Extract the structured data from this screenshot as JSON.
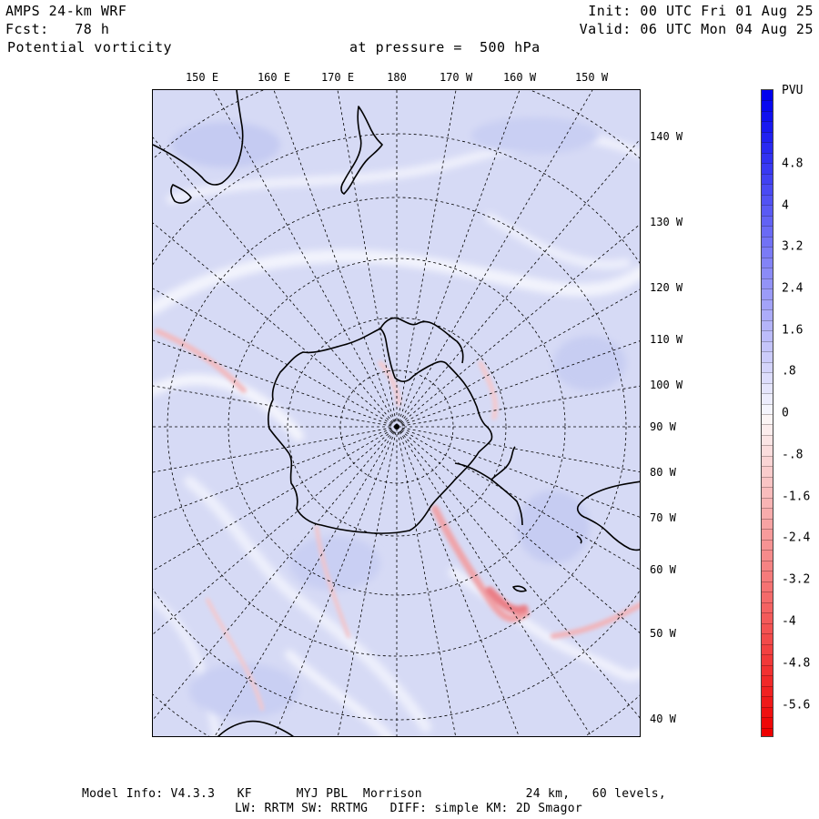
{
  "header": {
    "model_title": "AMPS 24-km WRF",
    "forecast": "Fcst:   78 h",
    "field": "Potential vorticity",
    "pressure": "at pressure =  500 hPa",
    "init": "Init: 00 UTC Fri 01 Aug 25",
    "valid": "Valid: 06 UTC Mon 04 Aug 25"
  },
  "map": {
    "top_longitudes": [
      "150 E",
      "160 E",
      "170 E",
      "180",
      "170 W",
      "160 W",
      "150 W"
    ],
    "right_longitudes": [
      "140 W",
      "130 W",
      "120 W",
      "110 W",
      "100 W",
      "90 W",
      "80 W",
      "70 W",
      "60 W",
      "50 W",
      "40 W"
    ],
    "background_color": "#d8dcf6",
    "coastline_color": "#000000"
  },
  "colorbar": {
    "unit": "PVU",
    "labels": [
      "4.8",
      "4",
      "3.2",
      "2.4",
      "1.6",
      ".8",
      "0",
      "-.8",
      "-1.6",
      "-2.4",
      "-3.2",
      "-4",
      "-4.8",
      "-5.6"
    ],
    "positive_color": "#0000ee",
    "negative_color": "#ee0000"
  },
  "footer": {
    "line1": "Model Info: V4.3.3   KF      MYJ PBL  Morrison              24 km,   60 levels,",
    "line2": "LW: RRTM SW: RRTMG   DIFF: simple KM: 2D Smagor"
  }
}
